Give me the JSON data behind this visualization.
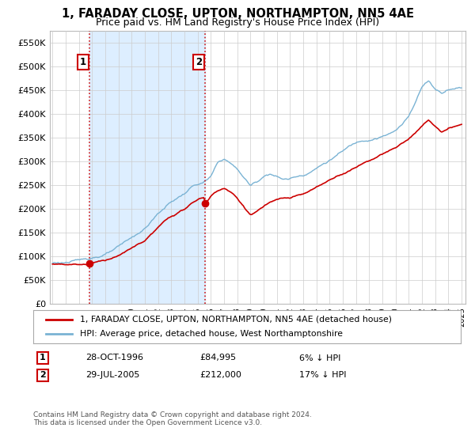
{
  "title_line1": "1, FARADAY CLOSE, UPTON, NORTHAMPTON, NN5 4AE",
  "title_line2": "Price paid vs. HM Land Registry's House Price Index (HPI)",
  "ylim": [
    0,
    575000
  ],
  "yticks": [
    0,
    50000,
    100000,
    150000,
    200000,
    250000,
    300000,
    350000,
    400000,
    450000,
    500000,
    550000
  ],
  "ytick_labels": [
    "£0",
    "£50K",
    "£100K",
    "£150K",
    "£200K",
    "£250K",
    "£300K",
    "£350K",
    "£400K",
    "£450K",
    "£500K",
    "£550K"
  ],
  "hpi_color": "#7ab3d4",
  "price_color": "#cc0000",
  "vline_color": "#cc0000",
  "shade_color": "#ddeeff",
  "bg_color": "#ffffff",
  "grid_color": "#cccccc",
  "legend_label_red": "1, FARADAY CLOSE, UPTON, NORTHAMPTON, NN5 4AE (detached house)",
  "legend_label_blue": "HPI: Average price, detached house, West Northamptonshire",
  "annotation1_label": "1",
  "annotation1_date": "28-OCT-1996",
  "annotation1_price": "£84,995",
  "annotation1_hpi": "6% ↓ HPI",
  "annotation2_label": "2",
  "annotation2_date": "29-JUL-2005",
  "annotation2_price": "£212,000",
  "annotation2_hpi": "17% ↓ HPI",
  "footnote": "Contains HM Land Registry data © Crown copyright and database right 2024.\nThis data is licensed under the Open Government Licence v3.0.",
  "sale1_year": 1996.83,
  "sale1_price": 84995,
  "sale2_year": 2005.58,
  "sale2_price": 212000,
  "xmin": 1994,
  "xmax": 2025
}
